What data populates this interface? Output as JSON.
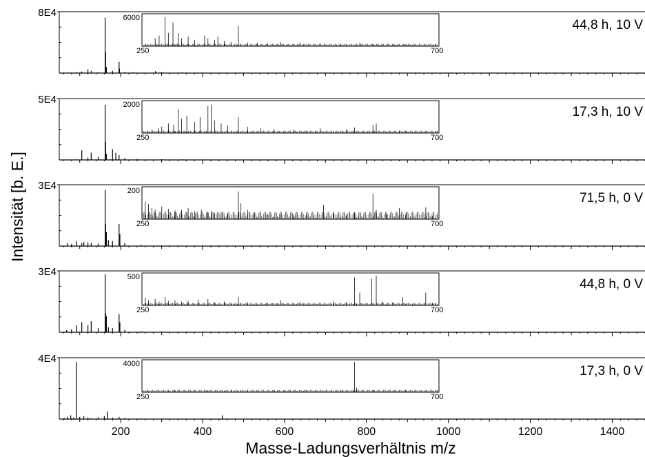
{
  "chart_data": {
    "type": "line",
    "xlabel": "Masse-Ladungsverhältnis m/z",
    "ylabel": "Intensität [b. E.]",
    "xlim": [
      50,
      1480
    ],
    "xticks": [
      200,
      400,
      600,
      800,
      1000,
      1200,
      1400
    ],
    "inset_xlim": [
      250,
      700
    ],
    "inset_xtick_labels": [
      "250",
      "700"
    ],
    "panels": [
      {
        "label": "44,8 h, 10 V",
        "ymax_label": "8E4",
        "ymax": 80000,
        "inset_ymax_label": "6000",
        "inset_ymax": 6000,
        "peaks": [
          [
            78,
            600
          ],
          [
            92,
            1000
          ],
          [
            105,
            2000
          ],
          [
            120,
            5000
          ],
          [
            128,
            3000
          ],
          [
            145,
            1500
          ],
          [
            162,
            74000
          ],
          [
            163,
            28000
          ],
          [
            165,
            8000
          ],
          [
            180,
            3000
          ],
          [
            196,
            15000
          ],
          [
            197,
            6000
          ],
          [
            210,
            1500
          ],
          [
            230,
            1000
          ],
          [
            285,
            2500
          ],
          [
            300,
            1200
          ],
          [
            350,
            800
          ],
          [
            400,
            600
          ],
          [
            600,
            400
          ],
          [
            900,
            200
          ]
        ],
        "inset_peaks": [
          [
            270,
            1500
          ],
          [
            276,
            2000
          ],
          [
            285,
            5500
          ],
          [
            290,
            2500
          ],
          [
            297,
            4500
          ],
          [
            305,
            2500
          ],
          [
            310,
            1500
          ],
          [
            320,
            1800
          ],
          [
            330,
            1200
          ],
          [
            345,
            2000
          ],
          [
            350,
            1500
          ],
          [
            360,
            1200
          ],
          [
            365,
            1800
          ],
          [
            375,
            1000
          ],
          [
            385,
            800
          ],
          [
            396,
            3800
          ],
          [
            410,
            700
          ],
          [
            425,
            600
          ],
          [
            440,
            500
          ],
          [
            460,
            800
          ],
          [
            490,
            600
          ],
          [
            520,
            500
          ],
          [
            550,
            400
          ],
          [
            580,
            600
          ],
          [
            600,
            300
          ],
          [
            630,
            200
          ],
          [
            680,
            150
          ]
        ]
      },
      {
        "label": "17,3 h, 10 V",
        "ymax_label": "5E4",
        "ymax": 50000,
        "inset_ymax_label": "2000",
        "inset_ymax": 2000,
        "peaks": [
          [
            75,
            300
          ],
          [
            92,
            500
          ],
          [
            105,
            8000
          ],
          [
            120,
            2000
          ],
          [
            128,
            6000
          ],
          [
            145,
            2500
          ],
          [
            162,
            46000
          ],
          [
            163,
            15000
          ],
          [
            165,
            5000
          ],
          [
            180,
            9000
          ],
          [
            188,
            6000
          ],
          [
            196,
            4000
          ],
          [
            210,
            1500
          ],
          [
            240,
            800
          ],
          [
            300,
            600
          ],
          [
            350,
            500
          ],
          [
            400,
            400
          ],
          [
            600,
            300
          ],
          [
            950,
            150
          ]
        ],
        "inset_peaks": [
          [
            265,
            200
          ],
          [
            275,
            300
          ],
          [
            280,
            400
          ],
          [
            290,
            600
          ],
          [
            298,
            500
          ],
          [
            305,
            1500
          ],
          [
            310,
            900
          ],
          [
            318,
            1100
          ],
          [
            330,
            700
          ],
          [
            338,
            1000
          ],
          [
            350,
            1700
          ],
          [
            355,
            1800
          ],
          [
            360,
            800
          ],
          [
            370,
            600
          ],
          [
            380,
            500
          ],
          [
            396,
            1000
          ],
          [
            410,
            400
          ],
          [
            430,
            300
          ],
          [
            450,
            250
          ],
          [
            480,
            200
          ],
          [
            520,
            300
          ],
          [
            560,
            250
          ],
          [
            572,
            350
          ],
          [
            600,
            500
          ],
          [
            605,
            600
          ],
          [
            640,
            150
          ],
          [
            680,
            100
          ]
        ]
      },
      {
        "label": "71,5 h, 0 V",
        "ymax_label": "3E4",
        "ymax": 30000,
        "inset_ymax_label": "200",
        "inset_ymax": 200,
        "peaks": [
          [
            70,
            1500
          ],
          [
            80,
            1000
          ],
          [
            92,
            2500
          ],
          [
            105,
            1500
          ],
          [
            110,
            2000
          ],
          [
            120,
            1800
          ],
          [
            128,
            1500
          ],
          [
            145,
            1200
          ],
          [
            162,
            28000
          ],
          [
            163,
            11000
          ],
          [
            165,
            7000
          ],
          [
            170,
            3000
          ],
          [
            180,
            2500
          ],
          [
            196,
            11000
          ],
          [
            198,
            6000
          ],
          [
            210,
            1500
          ],
          [
            250,
            600
          ],
          [
            300,
            400
          ],
          [
            400,
            300
          ],
          [
            600,
            300
          ]
        ],
        "inset_peaks": [
          [
            255,
            110
          ],
          [
            260,
            95
          ],
          [
            265,
            70
          ],
          [
            270,
            60
          ],
          [
            280,
            80
          ],
          [
            290,
            65
          ],
          [
            300,
            55
          ],
          [
            310,
            60
          ],
          [
            320,
            70
          ],
          [
            330,
            50
          ],
          [
            340,
            60
          ],
          [
            350,
            45
          ],
          [
            355,
            50
          ],
          [
            360,
            40
          ],
          [
            370,
            45
          ],
          [
            380,
            35
          ],
          [
            396,
            175
          ],
          [
            400,
            100
          ],
          [
            410,
            60
          ],
          [
            420,
            40
          ],
          [
            440,
            35
          ],
          [
            460,
            30
          ],
          [
            480,
            30
          ],
          [
            500,
            25
          ],
          [
            525,
            90
          ],
          [
            540,
            35
          ],
          [
            560,
            30
          ],
          [
            572,
            40
          ],
          [
            600,
            160
          ],
          [
            605,
            60
          ],
          [
            620,
            30
          ],
          [
            640,
            70
          ],
          [
            650,
            40
          ],
          [
            680,
            75
          ],
          [
            690,
            20
          ]
        ]
      },
      {
        "label": "44,8 h, 0 V",
        "ymax_label": "3E4",
        "ymax": 30000,
        "inset_ymax_label": "500",
        "inset_ymax": 500,
        "peaks": [
          [
            68,
            1000
          ],
          [
            80,
            1500
          ],
          [
            92,
            3500
          ],
          [
            105,
            5000
          ],
          [
            120,
            3500
          ],
          [
            128,
            5500
          ],
          [
            145,
            2000
          ],
          [
            162,
            29000
          ],
          [
            163,
            9500
          ],
          [
            165,
            8000
          ],
          [
            170,
            2500
          ],
          [
            180,
            2000
          ],
          [
            196,
            9000
          ],
          [
            198,
            5000
          ],
          [
            210,
            1200
          ],
          [
            250,
            500
          ],
          [
            300,
            400
          ],
          [
            400,
            300
          ],
          [
            600,
            300
          ]
        ],
        "inset_peaks": [
          [
            255,
            120
          ],
          [
            260,
            80
          ],
          [
            270,
            100
          ],
          [
            276,
            60
          ],
          [
            285,
            130
          ],
          [
            290,
            70
          ],
          [
            300,
            80
          ],
          [
            310,
            60
          ],
          [
            320,
            70
          ],
          [
            335,
            90
          ],
          [
            350,
            100
          ],
          [
            360,
            50
          ],
          [
            375,
            60
          ],
          [
            385,
            40
          ],
          [
            396,
            130
          ],
          [
            410,
            50
          ],
          [
            440,
            40
          ],
          [
            460,
            80
          ],
          [
            490,
            50
          ],
          [
            520,
            40
          ],
          [
            540,
            60
          ],
          [
            560,
            50
          ],
          [
            572,
            440
          ],
          [
            580,
            200
          ],
          [
            598,
            420
          ],
          [
            605,
            470
          ],
          [
            615,
            60
          ],
          [
            630,
            50
          ],
          [
            645,
            130
          ],
          [
            680,
            200
          ],
          [
            690,
            40
          ]
        ]
      },
      {
        "label": "17,3 h, 0 V",
        "ymax_label": "4E4",
        "ymax": 40000,
        "inset_ymax_label": "4000",
        "inset_ymax": 4000,
        "peaks": [
          [
            62,
            800
          ],
          [
            70,
            1500
          ],
          [
            78,
            2500
          ],
          [
            85,
            1000
          ],
          [
            92,
            38000
          ],
          [
            100,
            1500
          ],
          [
            110,
            2000
          ],
          [
            120,
            1000
          ],
          [
            128,
            600
          ],
          [
            145,
            1200
          ],
          [
            160,
            2000
          ],
          [
            168,
            5000
          ],
          [
            180,
            1000
          ],
          [
            196,
            1500
          ],
          [
            210,
            800
          ],
          [
            250,
            400
          ],
          [
            300,
            300
          ],
          [
            350,
            300
          ],
          [
            400,
            300
          ],
          [
            448,
            2500
          ],
          [
            500,
            200
          ],
          [
            600,
            200
          ],
          [
            800,
            100
          ]
        ],
        "inset_peaks": [
          [
            255,
            80
          ],
          [
            270,
            60
          ],
          [
            290,
            70
          ],
          [
            300,
            50
          ],
          [
            320,
            40
          ],
          [
            340,
            60
          ],
          [
            360,
            40
          ],
          [
            375,
            150
          ],
          [
            385,
            230
          ],
          [
            400,
            80
          ],
          [
            420,
            40
          ],
          [
            450,
            60
          ],
          [
            480,
            50
          ],
          [
            520,
            40
          ],
          [
            560,
            50
          ],
          [
            572,
            3800
          ],
          [
            575,
            600
          ],
          [
            590,
            40
          ],
          [
            620,
            40
          ],
          [
            660,
            30
          ],
          [
            690,
            20
          ]
        ]
      }
    ]
  }
}
